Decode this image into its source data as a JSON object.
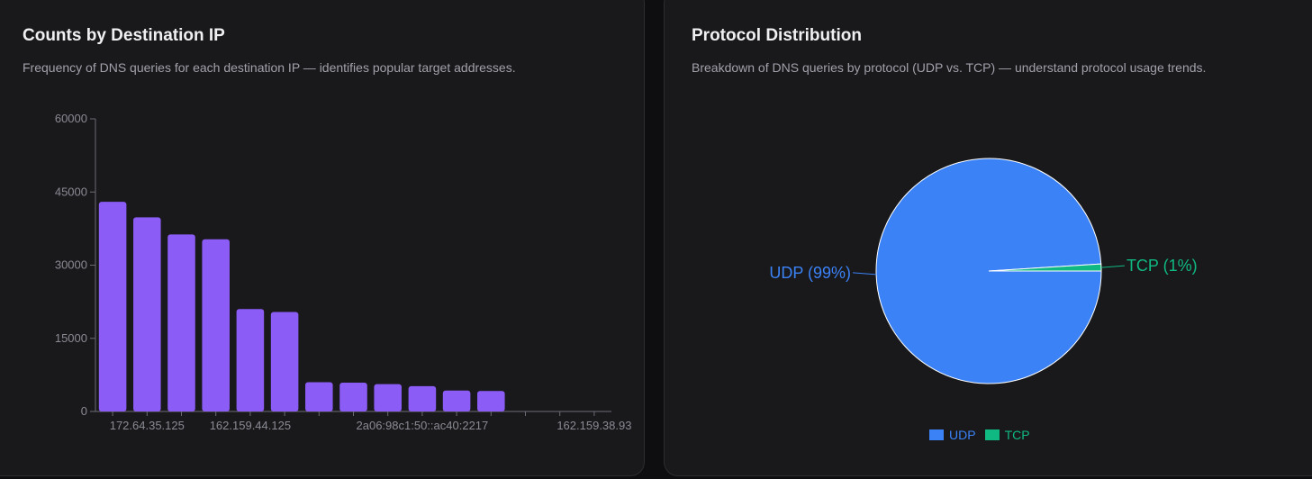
{
  "cards": {
    "destination": {
      "title": "Counts by Destination IP",
      "subtitle": "Frequency of DNS queries for each destination IP — identifies popular target addresses."
    },
    "protocol": {
      "title": "Protocol Distribution",
      "subtitle": "Breakdown of DNS queries by protocol (UDP vs. TCP) — understand protocol usage trends."
    }
  },
  "colors": {
    "bar": "#8b5cf6",
    "udp": "#3b82f6",
    "tcp": "#10b981",
    "axis": "#6b6b73",
    "tick_text": "#8a8a93"
  },
  "chart_data": [
    {
      "type": "bar",
      "title": "Counts by Destination IP",
      "categories": [
        "",
        "172.64.35.125",
        "",
        "",
        "162.159.44.125",
        "",
        "",
        "",
        "",
        "2a06:98c1:50::ac40:2217",
        "",
        "",
        "",
        "",
        "162.159.38.93"
      ],
      "values": [
        43000,
        39800,
        36300,
        35300,
        21000,
        20400,
        6000,
        5900,
        5600,
        5200,
        4300,
        4200,
        0,
        0,
        0
      ],
      "ylim": [
        0,
        60000
      ],
      "yticks": [
        0,
        15000,
        30000,
        45000,
        60000
      ],
      "xlabel": "",
      "ylabel": "",
      "grid": false
    },
    {
      "type": "pie",
      "title": "Protocol Distribution",
      "labels": [
        "UDP",
        "TCP"
      ],
      "values": [
        99,
        1
      ],
      "slice_labels": [
        "UDP (99%)",
        "TCP (1%)"
      ],
      "legend": [
        "UDP",
        "TCP"
      ],
      "legend_position": "bottom"
    }
  ]
}
